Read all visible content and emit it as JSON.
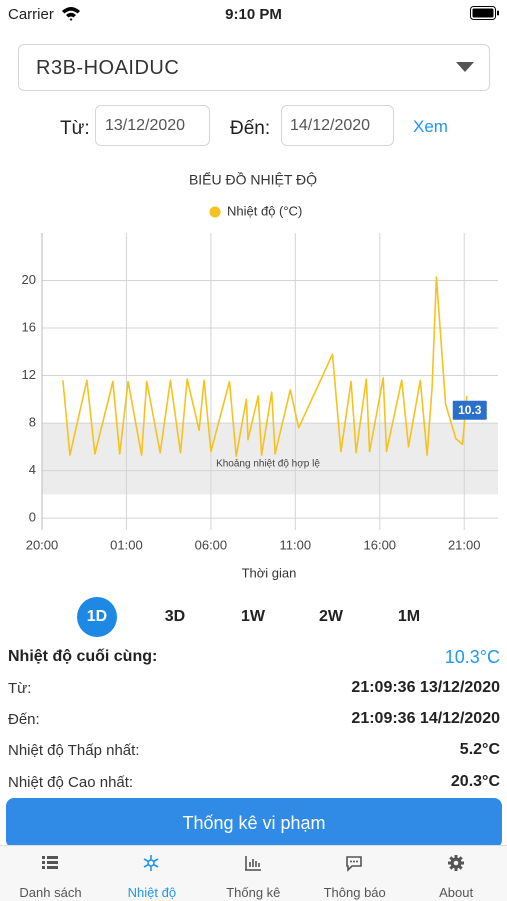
{
  "status_bar": {
    "carrier": "Carrier",
    "time": "9:10 PM"
  },
  "station": "R3B-HOAIDUC",
  "filter": {
    "from_label": "Từ:",
    "from": "13/12/2020",
    "to_label": "Đến:",
    "to": "14/12/2020",
    "button": "Xem"
  },
  "chart_data": {
    "type": "line",
    "title": "BIỂU ĐỒ NHIỆT ĐỘ",
    "x_label": "Thời gian",
    "x": [
      1.24,
      1.65,
      2.66,
      3.13,
      4.2,
      4.6,
      5.1,
      5.9,
      6.2,
      7.0,
      7.6,
      8.2,
      8.6,
      9.3,
      9.6,
      10.0,
      11.1,
      11.5,
      12.1,
      12.2,
      12.8,
      13.0,
      13.6,
      13.8,
      14.7,
      15.2,
      17.2,
      17.7,
      18.3,
      18.6,
      19.2,
      19.4,
      20.2,
      20.4,
      21.3,
      21.7,
      22.4,
      22.8,
      23.1,
      23.35,
      23.9,
      24.5,
      24.9,
      25.15
    ],
    "series": [
      {
        "name": "Nhiệt độ (°C)",
        "color": "#f7c21d",
        "values": [
          11.6,
          5.3,
          11.6,
          5.4,
          11.5,
          5.4,
          11.5,
          5.3,
          11.5,
          5.5,
          11.6,
          5.5,
          11.7,
          7.4,
          11.6,
          5.6,
          11.5,
          5.2,
          10.0,
          6.6,
          10.3,
          5.3,
          10.6,
          5.4,
          10.8,
          7.6,
          13.8,
          5.6,
          11.5,
          5.5,
          11.7,
          5.6,
          11.8,
          5.6,
          11.6,
          6.0,
          11.6,
          5.3,
          11.0,
          20.3,
          9.6,
          6.7,
          6.2,
          10.3
        ]
      }
    ],
    "xlim": [
      0,
      27
    ],
    "xticks": [
      {
        "value": 0,
        "label": "20:00"
      },
      {
        "value": 5,
        "label": "01:00"
      },
      {
        "value": 10,
        "label": "06:00"
      },
      {
        "value": 15,
        "label": "11:00"
      },
      {
        "value": 20,
        "label": "16:00"
      },
      {
        "value": 25,
        "label": "21:00"
      }
    ],
    "ylim": [
      -1,
      24
    ],
    "yticks": [
      0,
      4,
      8,
      12,
      16,
      20
    ],
    "grid": true,
    "band": {
      "range": [
        2,
        8
      ],
      "label": "Khoảng nhiệt độ hợp lệ",
      "color": "#ececec"
    }
  },
  "ranges": [
    "1D",
    "3D",
    "1W",
    "2W",
    "1M"
  ],
  "selected_range": 0,
  "stats": [
    {
      "label": "Nhiệt độ cuối cùng:",
      "value": "10.3°C"
    },
    {
      "label": "Từ:",
      "value": "21:09:36 13/12/2020"
    },
    {
      "label": "Đến:",
      "value": "21:09:36 14/12/2020"
    },
    {
      "label": "Nhiệt độ Thấp nhất:",
      "value": "5.2°C"
    },
    {
      "label": "Nhiệt độ Cao nhất:",
      "value": "20.3°C"
    }
  ],
  "button": "Thống kê vi phạm",
  "nav": [
    "Danh sách",
    "Nhiệt độ",
    "Thống kê",
    "Thông báo",
    "About"
  ],
  "nav_active": 1
}
